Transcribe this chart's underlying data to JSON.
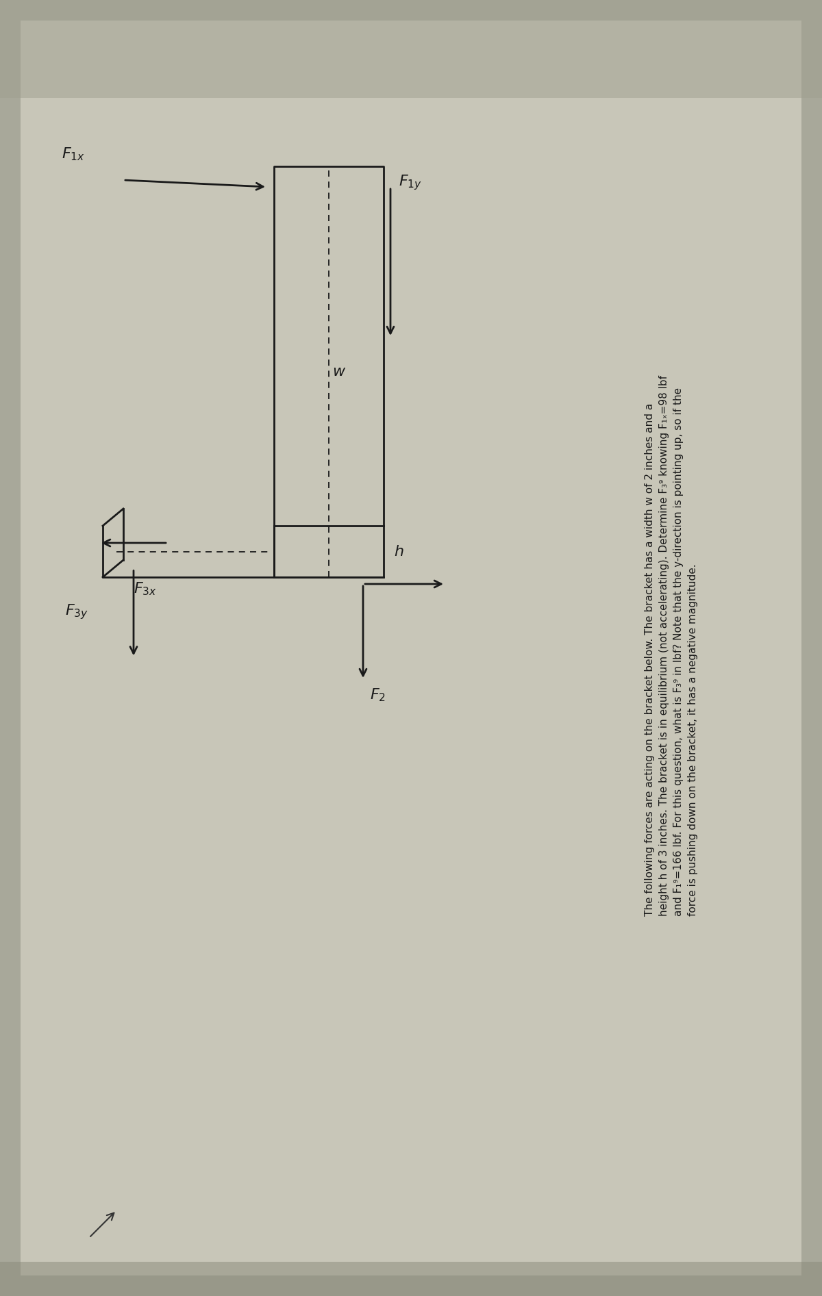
{
  "fig_width": 12.0,
  "fig_height": 18.93,
  "bg_color": "#a8a89a",
  "paper_color": "#c2c0b4",
  "bracket_color": "#1a1a1a",
  "lw": 2.0,
  "fs_label": 16,
  "fs_text": 11.0,
  "text_lines": [
    "The following forces are acting on the bracket below. The bracket has a width w of 2 inches and a",
    "height h of 3 inches. The bracket is in equilibrium (not accelerating). Determine F₃⁹ knowing F₁ₓ=98 lbf",
    "and F₁⁹=166 lbf. For this question, what is F₃⁹ in lbf? Note that the y-direction is pointing up, so if the",
    "force is pushing down on the bracket, it has a negative magnitude."
  ]
}
